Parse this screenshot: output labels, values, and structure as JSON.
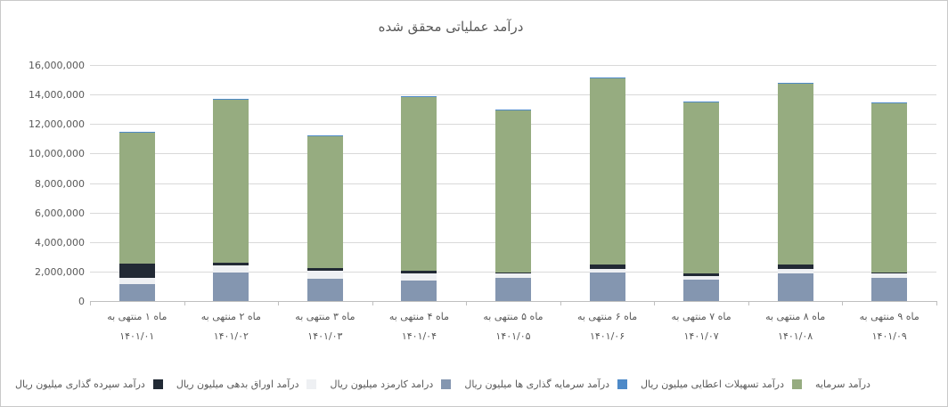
{
  "frame": {
    "background": "#ffffff",
    "border_color": "#c9c9c9"
  },
  "chart_data": {
    "type": "bar",
    "stacked": true,
    "rtl": true,
    "title": "درآمد عملیاتی محقق شده",
    "categories_line1": [
      "ماه ۱ منتهی به",
      "ماه ۲ منتهی به",
      "ماه ۳ منتهی به",
      "ماه ۴ منتهی به",
      "ماه ۵ منتهی به",
      "ماه ۶ منتهی به",
      "ماه ۷ منتهی به",
      "ماه ۸ منتهی به",
      "ماه ۹ منتهی به"
    ],
    "categories_line2": [
      "۱۴۰۱/۰۱",
      "۱۴۰۱/۰۲",
      "۱۴۰۱/۰۳",
      "۱۴۰۱/۰۴",
      "۱۴۰۱/۰۵",
      "۱۴۰۱/۰۶",
      "۱۴۰۱/۰۷",
      "۱۴۰۱/۰۸",
      "۱۴۰۱/۰۹"
    ],
    "series": [
      {
        "name": "درامد کارمزد میلیون ریال",
        "color": "#8496b0",
        "values": [
          1150000,
          1950000,
          1500000,
          1400000,
          1600000,
          1950000,
          1450000,
          1850000,
          1600000
        ]
      },
      {
        "name": "درآمد اوراق بدهی میلیون ریال",
        "color": "#eef0f3",
        "values": [
          420000,
          450000,
          550000,
          450000,
          250000,
          250000,
          250000,
          300000,
          250000
        ]
      },
      {
        "name": "درآمد سپرده گذاری میلیون ریال",
        "color": "#222a35",
        "values": [
          950000,
          200000,
          200000,
          200000,
          100000,
          250000,
          150000,
          350000,
          100000
        ]
      },
      {
        "name": "درآمد تسهیلات اعطایی میلیون ریال",
        "color": "#96ac80",
        "values": [
          8880000,
          11050000,
          8950000,
          11800000,
          11000000,
          12650000,
          11600000,
          12250000,
          11450000
        ]
      },
      {
        "name": "درآمد سرمایه گذاری ها میلیون ریال",
        "color": "#4e8ac8",
        "values": [
          100000,
          50000,
          50000,
          50000,
          50000,
          50000,
          50000,
          50000,
          50000
        ]
      }
    ],
    "totals": [
      11500000,
      13700000,
      11250000,
      13900000,
      13000000,
      15150000,
      13500000,
      14800000,
      13450000
    ],
    "ylim": [
      0,
      16000000
    ],
    "ytick_step": 2000000,
    "ytick_labels": [
      "0",
      "2,000,000",
      "4,000,000",
      "6,000,000",
      "8,000,000",
      "10,000,000",
      "12,000,000",
      "14,000,000",
      "16,000,000"
    ],
    "grid": true,
    "legend_position": "bottom"
  },
  "legend": {
    "items": [
      {
        "label": "درآمد سپرده گذاری میلیون ریال",
        "color": "#222a35"
      },
      {
        "label": "درآمد اوراق بدهی میلیون ریال",
        "color": "#eef0f3"
      },
      {
        "label": "درامد کارمزد میلیون ریال",
        "color": "#8496b0"
      },
      {
        "label": "درآمد سرمایه گذاری ها میلیون ریال",
        "color": "#4e8ac8"
      },
      {
        "label": "درآمد تسهیلات اعطایی میلیون ریال",
        "color": "#96ac80"
      }
    ],
    "clipped_item_label": "درآمد سرمایه"
  },
  "style": {
    "text_color": "#595959",
    "gridline_color": "#d9d9d9",
    "axis_color": "#bfbfbf"
  }
}
